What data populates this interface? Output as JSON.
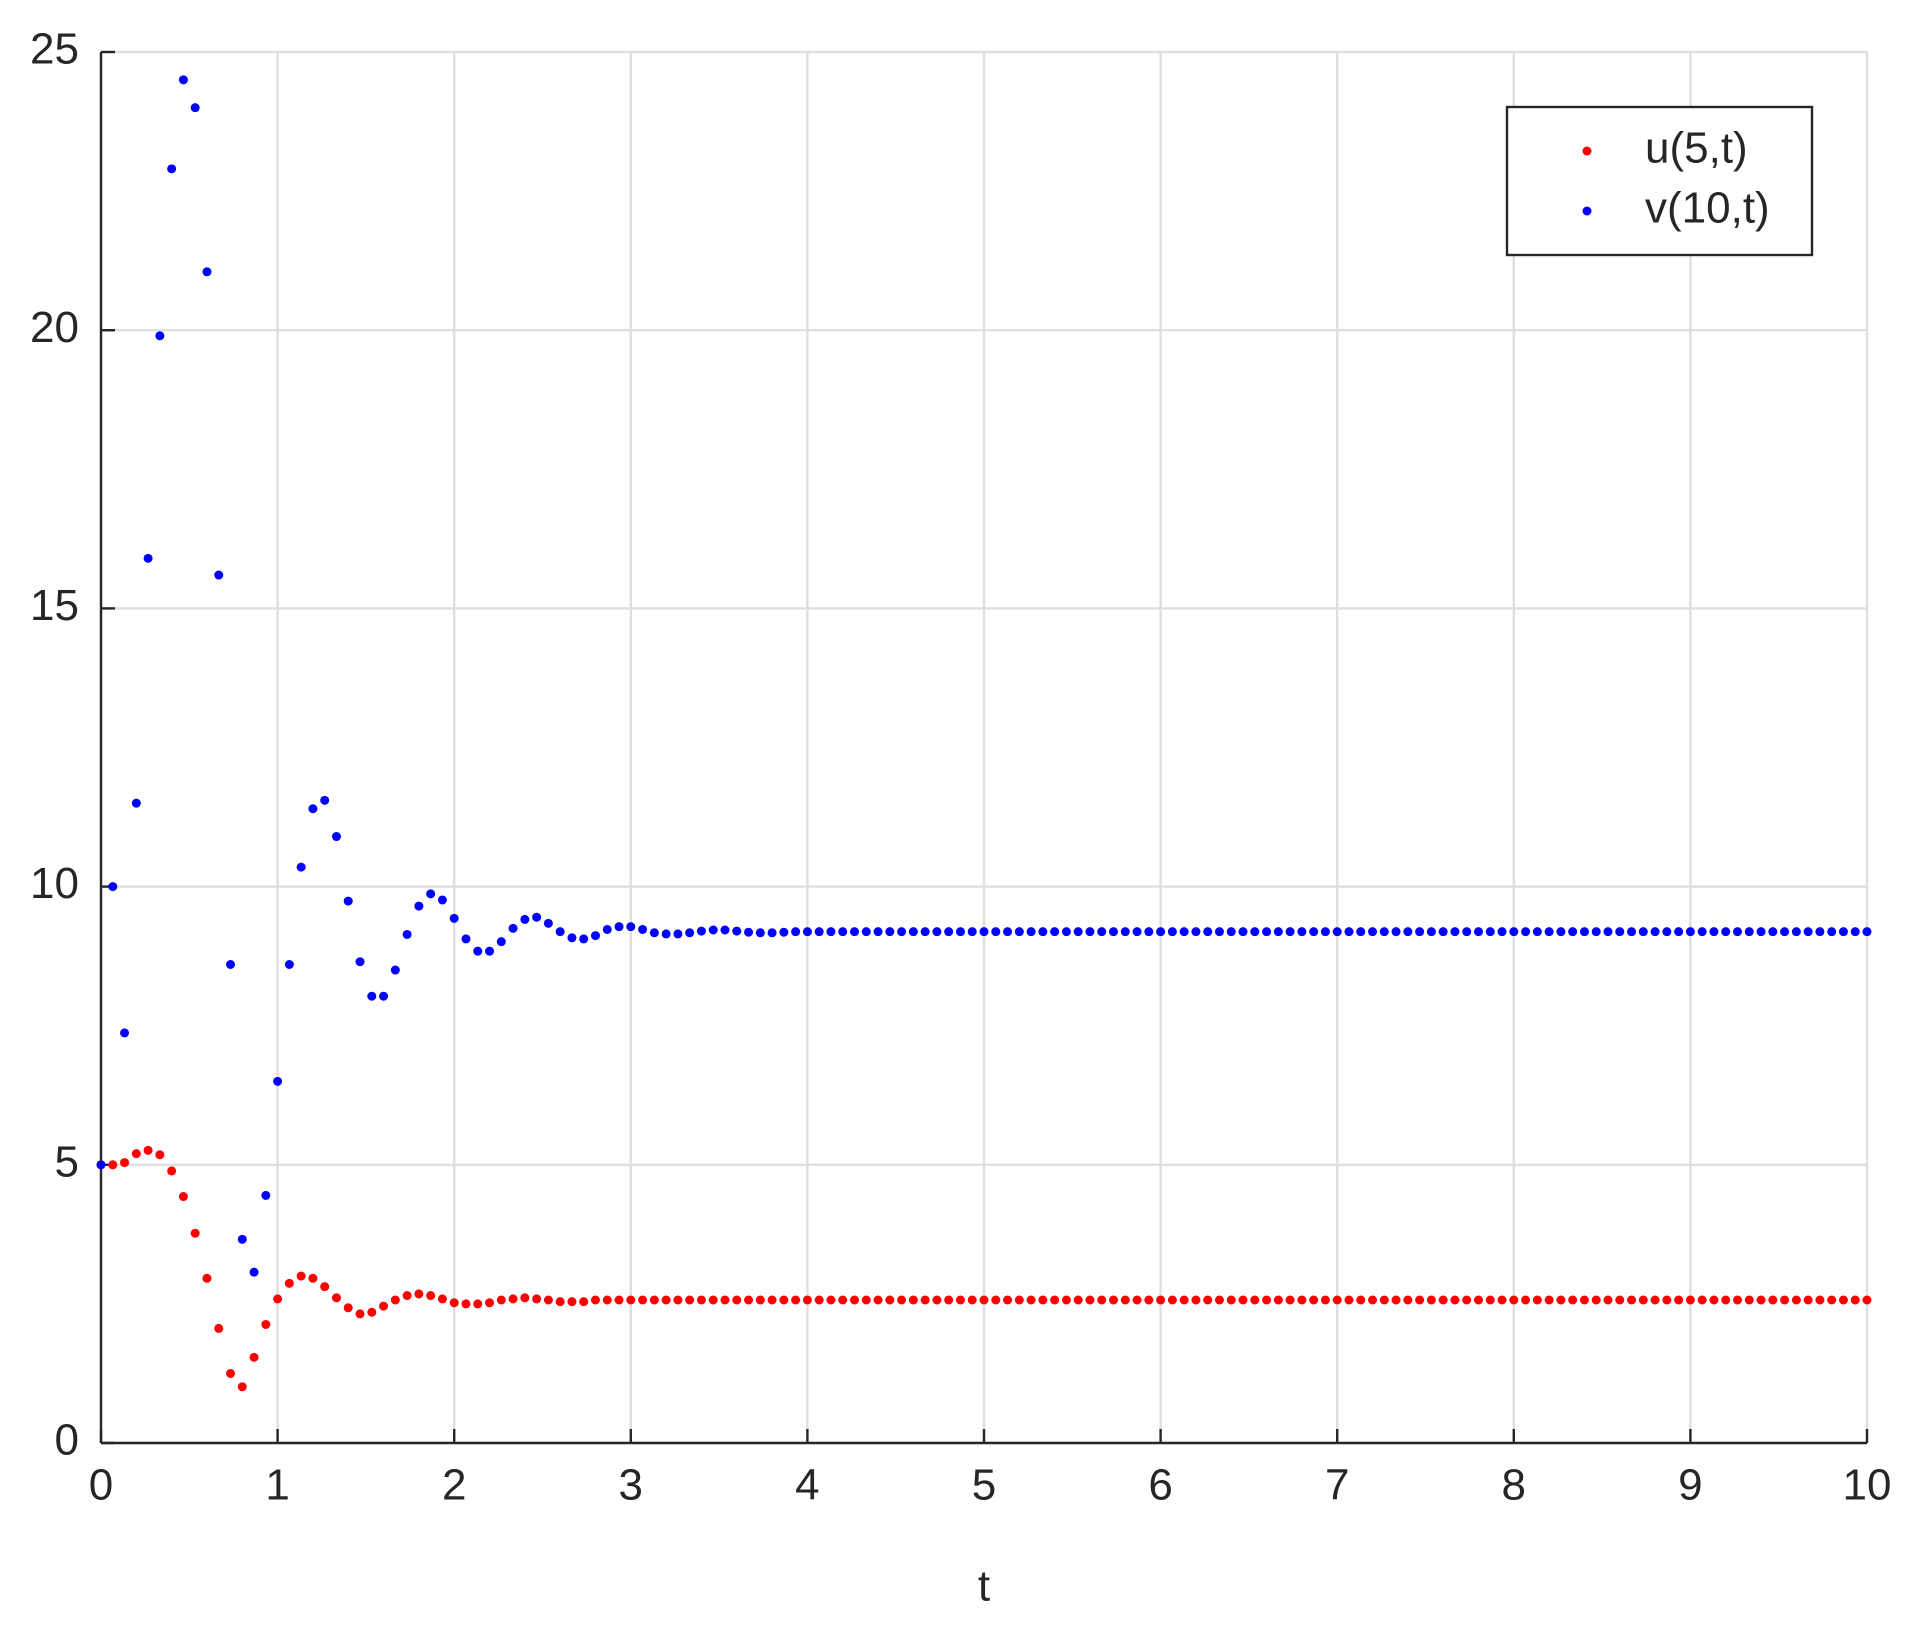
{
  "chart_data": {
    "type": "scatter",
    "xlabel": "t",
    "xlim": [
      0,
      10
    ],
    "ylim": [
      0,
      25
    ],
    "xticks": [
      0,
      1,
      2,
      3,
      4,
      5,
      6,
      7,
      8,
      9,
      10
    ],
    "yticks": [
      0,
      5,
      10,
      15,
      20,
      25
    ],
    "grid": true,
    "legend_position": "upper-right",
    "x": [
      0,
      0.0667,
      0.1333,
      0.2,
      0.2667,
      0.3333,
      0.4,
      0.4667,
      0.5333,
      0.6,
      0.6667,
      0.7333,
      0.8,
      0.8667,
      0.9333,
      1,
      1.0667,
      1.1333,
      1.2,
      1.2667,
      1.3333,
      1.4,
      1.4667,
      1.5333,
      1.6,
      1.6667,
      1.7333,
      1.8,
      1.8667,
      1.9333,
      2,
      2.0667,
      2.1333,
      2.2,
      2.2667,
      2.3333,
      2.4,
      2.4667,
      2.5333,
      2.6,
      2.6667,
      2.7333,
      2.8,
      2.8667,
      2.9333,
      3,
      3.0667,
      3.1333,
      3.2,
      3.2667,
      3.3333,
      3.4,
      3.4667,
      3.5333,
      3.6,
      3.6667,
      3.7333,
      3.8,
      3.8667,
      3.9333,
      4,
      4.0667,
      4.1333,
      4.2,
      4.2667,
      4.3333,
      4.4,
      4.4667,
      4.5333,
      4.6,
      4.6667,
      4.7333,
      4.8,
      4.8667,
      4.9333,
      5,
      5.0667,
      5.1333,
      5.2,
      5.2667,
      5.3333,
      5.4,
      5.4667,
      5.5333,
      5.6,
      5.6667,
      5.7333,
      5.8,
      5.8667,
      5.9333,
      6,
      6.0667,
      6.1333,
      6.2,
      6.2667,
      6.3333,
      6.4,
      6.4667,
      6.5333,
      6.6,
      6.6667,
      6.7333,
      6.8,
      6.8667,
      6.9333,
      7,
      7.0667,
      7.1333,
      7.2,
      7.2667,
      7.3333,
      7.4,
      7.4667,
      7.5333,
      7.6,
      7.6667,
      7.7333,
      7.8,
      7.8667,
      7.9333,
      8,
      8.0667,
      8.1333,
      8.2,
      8.2667,
      8.3333,
      8.4,
      8.4667,
      8.5333,
      8.6,
      8.6667,
      8.7333,
      8.8,
      8.8667,
      8.9333,
      9,
      9.0667,
      9.1333,
      9.2,
      9.2667,
      9.3333,
      9.4,
      9.4667,
      9.5333,
      9.6,
      9.6667,
      9.7333,
      9.8,
      9.8667,
      9.9333,
      10
    ],
    "series": [
      {
        "name": "u(5,t)",
        "color": "#ff0000",
        "values": [
          5.0,
          5.0,
          5.04,
          5.2,
          5.26,
          5.18,
          4.89,
          4.43,
          3.77,
          2.96,
          2.06,
          1.25,
          1.01,
          1.54,
          2.13,
          2.59,
          2.87,
          3.0,
          2.96,
          2.81,
          2.61,
          2.43,
          2.32,
          2.35,
          2.46,
          2.57,
          2.65,
          2.68,
          2.65,
          2.59,
          2.52,
          2.5,
          2.5,
          2.52,
          2.57,
          2.59,
          2.61,
          2.59,
          2.57,
          2.54,
          2.54,
          2.54,
          2.57,
          2.57,
          2.57,
          2.57,
          2.57,
          2.57,
          2.57,
          2.57,
          2.57,
          2.57,
          2.57,
          2.57,
          2.57,
          2.57,
          2.57,
          2.57,
          2.57,
          2.57,
          2.57,
          2.57,
          2.57,
          2.57,
          2.57,
          2.57,
          2.57,
          2.57,
          2.57,
          2.57,
          2.57,
          2.57,
          2.57,
          2.57,
          2.57,
          2.57,
          2.57,
          2.57,
          2.57,
          2.57,
          2.57,
          2.57,
          2.57,
          2.57,
          2.57,
          2.57,
          2.57,
          2.57,
          2.57,
          2.57,
          2.57,
          2.57,
          2.57,
          2.57,
          2.57,
          2.57,
          2.57,
          2.57,
          2.57,
          2.57,
          2.57,
          2.57,
          2.57,
          2.57,
          2.57,
          2.57,
          2.57,
          2.57,
          2.57,
          2.57,
          2.57,
          2.57,
          2.57,
          2.57,
          2.57,
          2.57,
          2.57,
          2.57,
          2.57,
          2.57,
          2.57,
          2.57,
          2.57,
          2.57,
          2.57,
          2.57,
          2.57,
          2.57,
          2.57,
          2.57,
          2.57,
          2.57,
          2.57,
          2.57,
          2.57,
          2.57,
          2.57,
          2.57,
          2.57,
          2.57,
          2.57,
          2.57,
          2.57,
          2.57,
          2.57,
          2.57,
          2.57,
          2.57,
          2.57,
          2.57,
          2.57
        ]
      },
      {
        "name": "v(10,t)",
        "color": "#0000ff",
        "values": [
          5.0,
          10.0,
          7.37,
          11.5,
          15.9,
          19.9,
          22.9,
          24.5,
          24.0,
          21.05,
          15.6,
          8.6,
          3.66,
          3.07,
          4.45,
          6.5,
          8.6,
          10.35,
          11.4,
          11.55,
          10.9,
          9.74,
          8.65,
          8.03,
          8.03,
          8.5,
          9.14,
          9.65,
          9.87,
          9.76,
          9.43,
          9.06,
          8.84,
          8.84,
          9.01,
          9.25,
          9.41,
          9.45,
          9.34,
          9.19,
          9.08,
          9.06,
          9.12,
          9.23,
          9.28,
          9.28,
          9.23,
          9.17,
          9.15,
          9.15,
          9.17,
          9.2,
          9.22,
          9.22,
          9.2,
          9.18,
          9.17,
          9.17,
          9.18,
          9.19,
          9.19,
          9.19,
          9.19,
          9.19,
          9.19,
          9.19,
          9.19,
          9.19,
          9.19,
          9.19,
          9.19,
          9.19,
          9.19,
          9.19,
          9.19,
          9.19,
          9.19,
          9.19,
          9.19,
          9.19,
          9.19,
          9.19,
          9.19,
          9.19,
          9.19,
          9.19,
          9.19,
          9.19,
          9.19,
          9.19,
          9.19,
          9.19,
          9.19,
          9.19,
          9.19,
          9.19,
          9.19,
          9.19,
          9.19,
          9.19,
          9.19,
          9.19,
          9.19,
          9.19,
          9.19,
          9.19,
          9.19,
          9.19,
          9.19,
          9.19,
          9.19,
          9.19,
          9.19,
          9.19,
          9.19,
          9.19,
          9.19,
          9.19,
          9.19,
          9.19,
          9.19,
          9.19,
          9.19,
          9.19,
          9.19,
          9.19,
          9.19,
          9.19,
          9.19,
          9.19,
          9.19,
          9.19,
          9.19,
          9.19,
          9.19,
          9.19,
          9.19,
          9.19,
          9.19,
          9.19,
          9.19,
          9.19,
          9.19,
          9.19,
          9.19,
          9.19,
          9.19,
          9.19,
          9.19,
          9.19,
          9.19
        ]
      }
    ]
  }
}
